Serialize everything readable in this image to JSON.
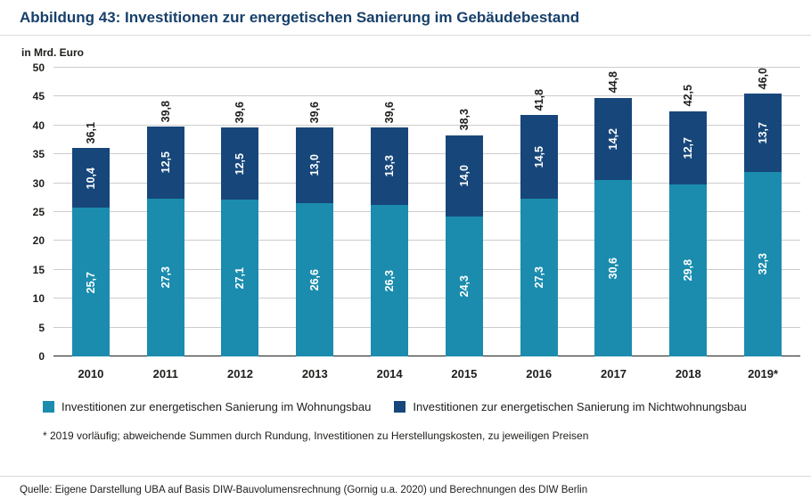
{
  "title": "Abbildung 43: Investitionen zur energetischen Sanierung im Gebäudebestand",
  "chart_data": {
    "type": "bar",
    "stacked": true,
    "unit_label": "in Mrd. Euro",
    "categories": [
      "2010",
      "2011",
      "2012",
      "2013",
      "2014",
      "2015",
      "2016",
      "2017",
      "2018",
      "2019*"
    ],
    "series": [
      {
        "name": "Investitionen zur energetischen Sanierung im Wohnungsbau",
        "color": "#1b8cae",
        "values": [
          25.7,
          27.3,
          27.1,
          26.6,
          26.3,
          24.3,
          27.3,
          30.6,
          29.8,
          32.3
        ]
      },
      {
        "name": "Investitionen zur energetischen Sanierung im Nichtwohnungsbau",
        "color": "#17477a",
        "values": [
          10.4,
          12.5,
          12.5,
          13.0,
          13.3,
          14.0,
          14.5,
          14.2,
          12.7,
          13.7
        ]
      }
    ],
    "totals": [
      36.1,
      39.8,
      39.6,
      39.6,
      39.6,
      38.3,
      41.8,
      44.8,
      42.5,
      46.0
    ],
    "ylim": [
      0,
      50
    ],
    "ytick_step": 5,
    "grid": true,
    "legend_position": "bottom",
    "value_label_color": "#ffffff",
    "total_label_color": "#1d1d1b"
  },
  "footnote": "* 2019 vorläufig; abweichende Summen durch Rundung, Investitionen zu Herstellungskosten, zu jeweiligen Preisen",
  "source": "Quelle: Eigene Darstellung UBA auf Basis DIW-Bauvolumensrechnung (Gornig u.a. 2020) und Berechnungen des DIW Berlin"
}
